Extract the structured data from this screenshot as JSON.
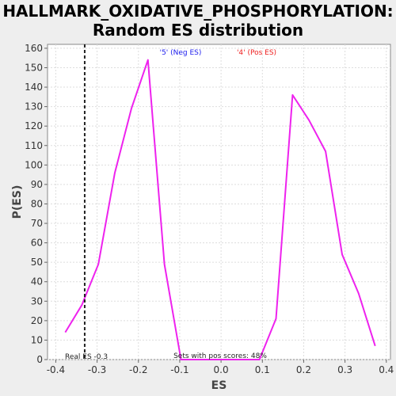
{
  "chart_data": {
    "type": "line",
    "title": "HALLMARK_OXIDATIVE_PHOSPHORYLATION:",
    "subtitle": "Random ES distribution",
    "xlabel": "ES",
    "ylabel": "P(ES)",
    "xlim": [
      -0.42,
      0.41
    ],
    "ylim": [
      0,
      162
    ],
    "xticks": [
      "-0.4",
      "-0.3",
      "-0.2",
      "-0.1",
      "0.0",
      "0.1",
      "0.2",
      "0.3",
      "0.4"
    ],
    "yticks": [
      "0",
      "10",
      "20",
      "30",
      "40",
      "50",
      "60",
      "70",
      "80",
      "90",
      "100",
      "110",
      "120",
      "130",
      "140",
      "150",
      "160"
    ],
    "grid": true,
    "series": [
      {
        "color": "#ee22ee",
        "x": [
          -0.377,
          -0.337,
          -0.297,
          -0.257,
          -0.217,
          -0.177,
          -0.137,
          -0.097,
          0.093,
          0.133,
          0.173,
          0.213,
          0.253,
          0.293,
          0.333,
          0.373
        ],
        "y": [
          14,
          28,
          49,
          96,
          129,
          154,
          49,
          0,
          0,
          21,
          136,
          123,
          107,
          54,
          34,
          7
        ]
      }
    ],
    "real_es": {
      "value": -0.33,
      "label": "Real ES -0.3"
    },
    "annotations": {
      "neg": {
        "text": "'5' (Neg ES)",
        "color": "#2020ee"
      },
      "pos": {
        "text": "'4' (Pos ES)",
        "color": "#ee2020"
      },
      "sets": {
        "text": "Sets with pos scores: 48%",
        "color": "#222222"
      }
    }
  }
}
